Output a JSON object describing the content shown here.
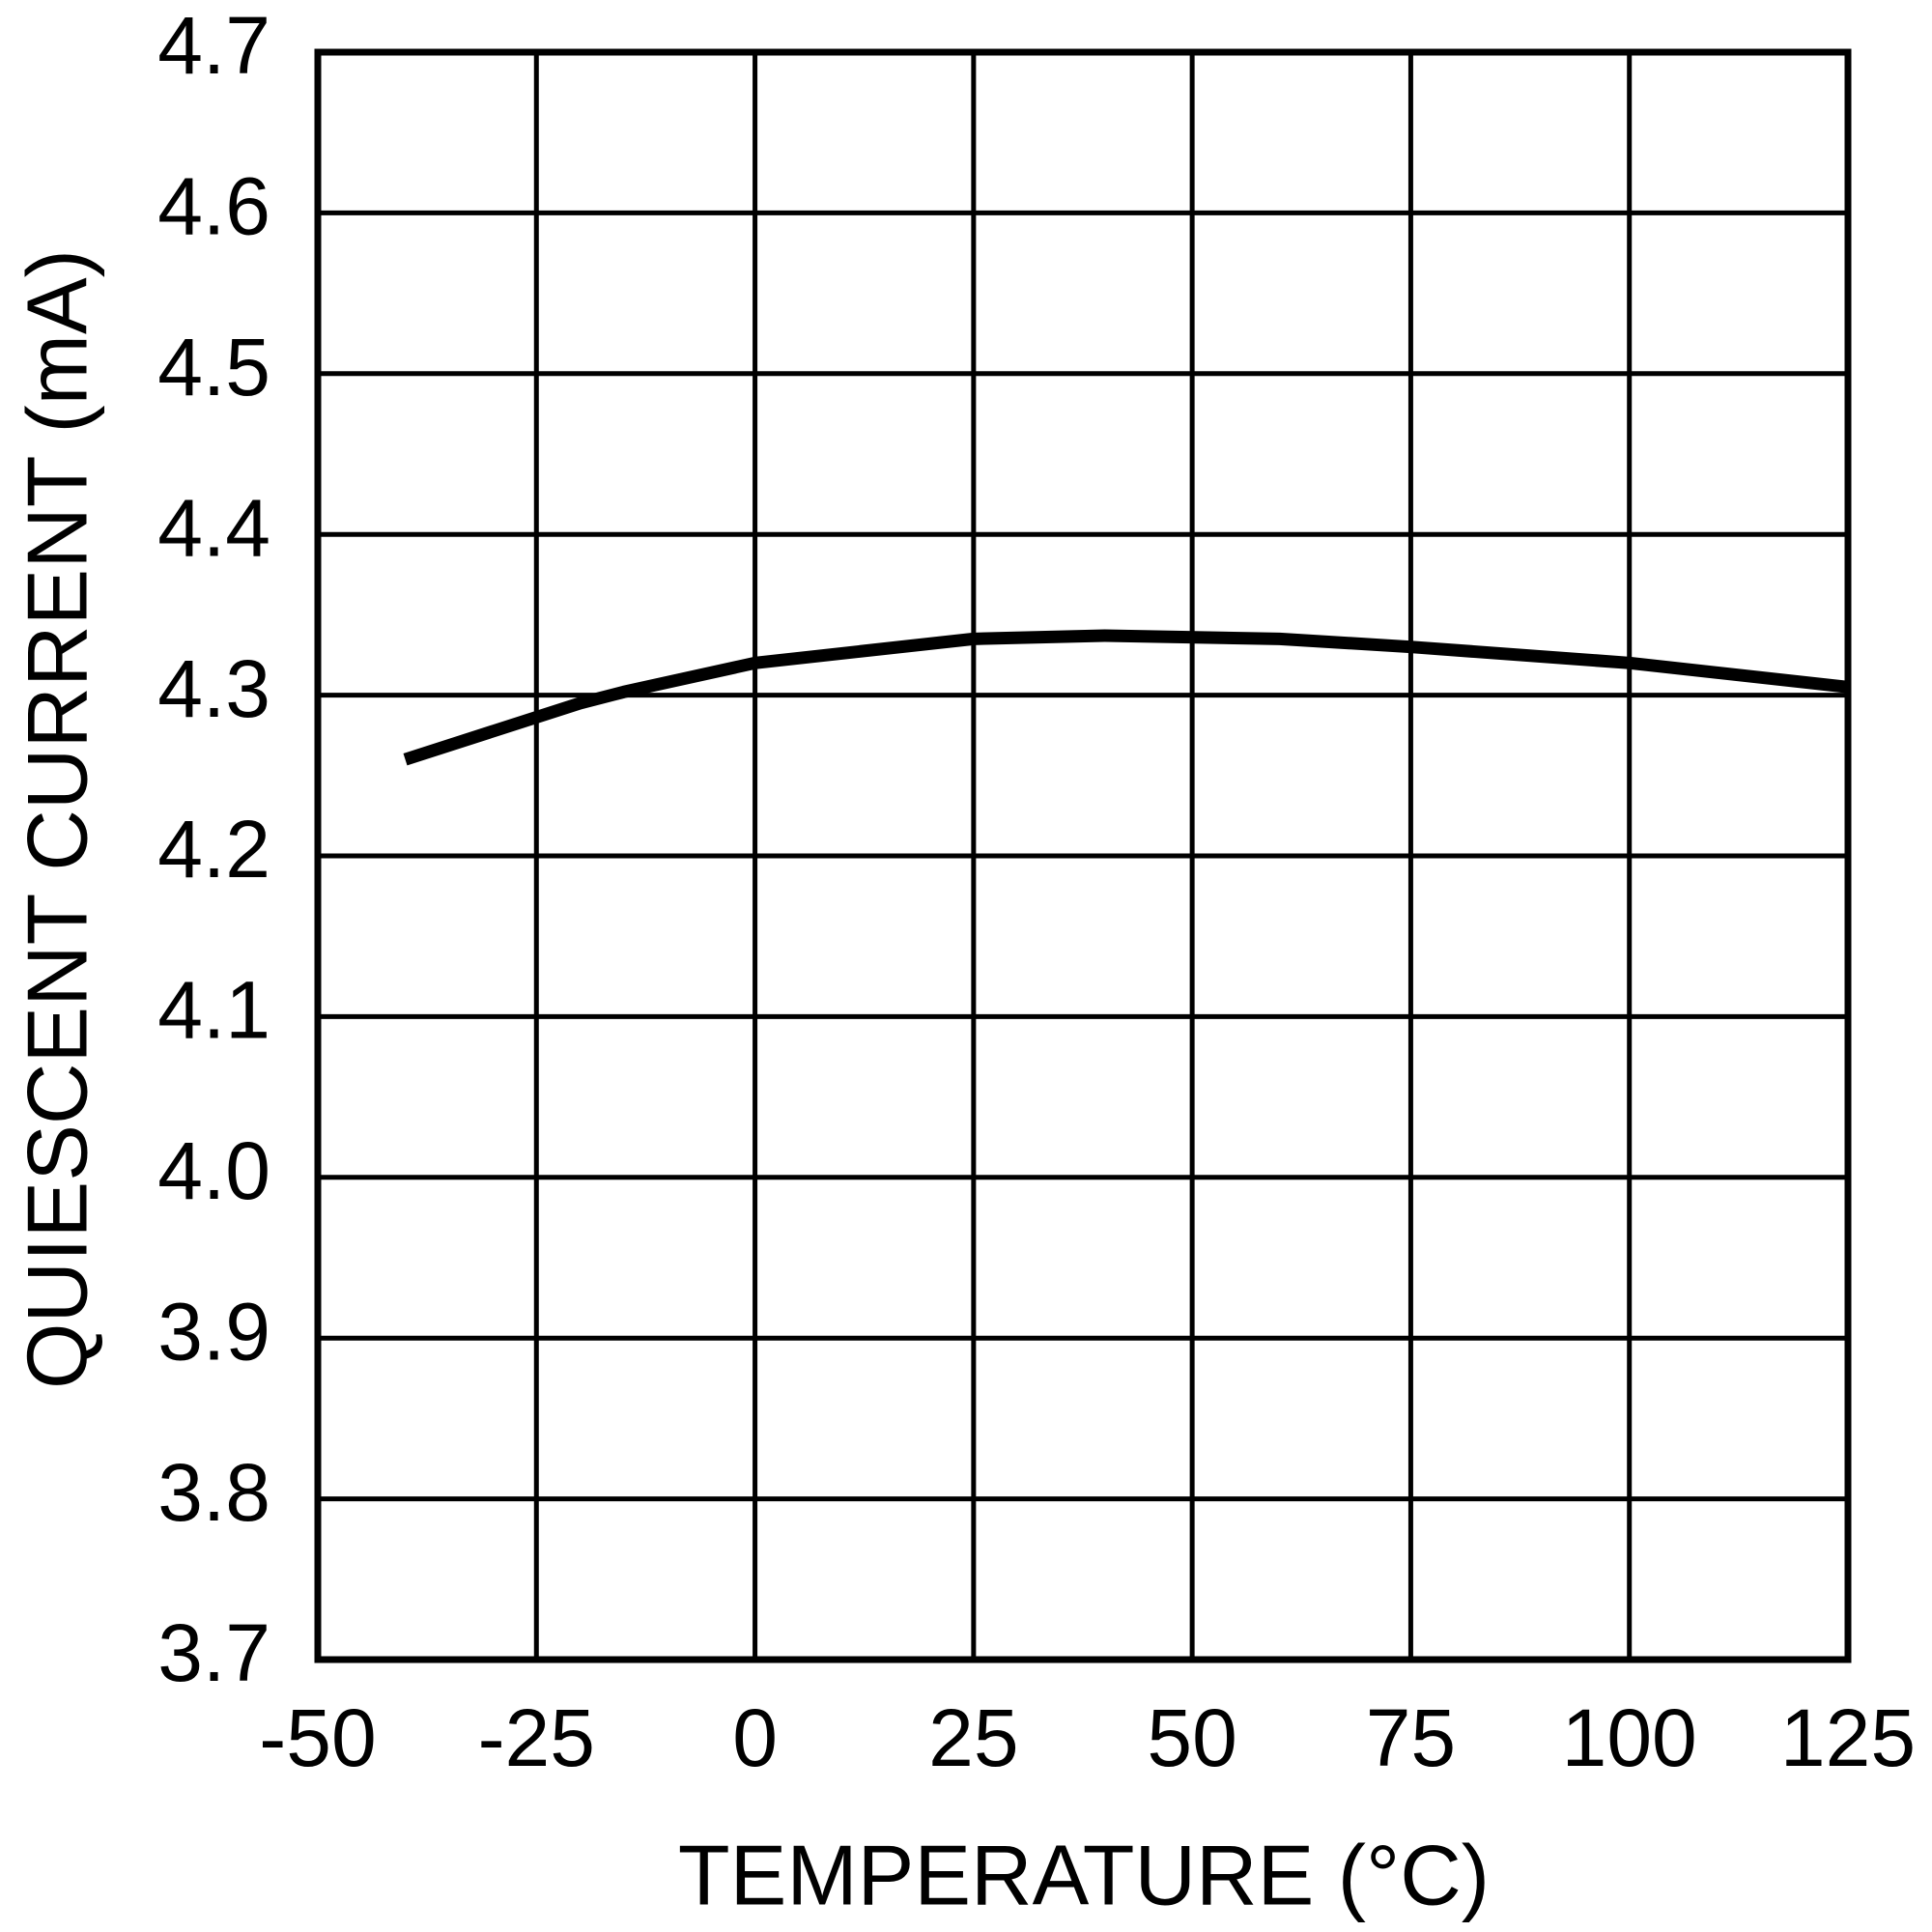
{
  "chart_data": {
    "type": "line",
    "xlabel": "TEMPERATURE (°C)",
    "ylabel": "QUIESCENT CURRENT (mA)",
    "x": [
      -40,
      -20,
      -15,
      0,
      25,
      40,
      60,
      75,
      100,
      125
    ],
    "series": [
      {
        "color": "#000000",
        "values": [
          4.26,
          4.295,
          4.302,
          4.32,
          4.335,
          4.337,
          4.335,
          4.33,
          4.32,
          4.305
        ]
      }
    ],
    "xlim": [
      -50,
      125
    ],
    "xticks": [
      -50,
      -25,
      0,
      25,
      50,
      75,
      100,
      125
    ],
    "ylim": [
      3.7,
      4.7
    ],
    "yticks": [
      3.7,
      3.8,
      3.9,
      {
        "value": 4,
        "label": "4.0"
      },
      4.1,
      4.2,
      4.3,
      4.4,
      4.5,
      4.6,
      4.7
    ],
    "grid": true
  }
}
